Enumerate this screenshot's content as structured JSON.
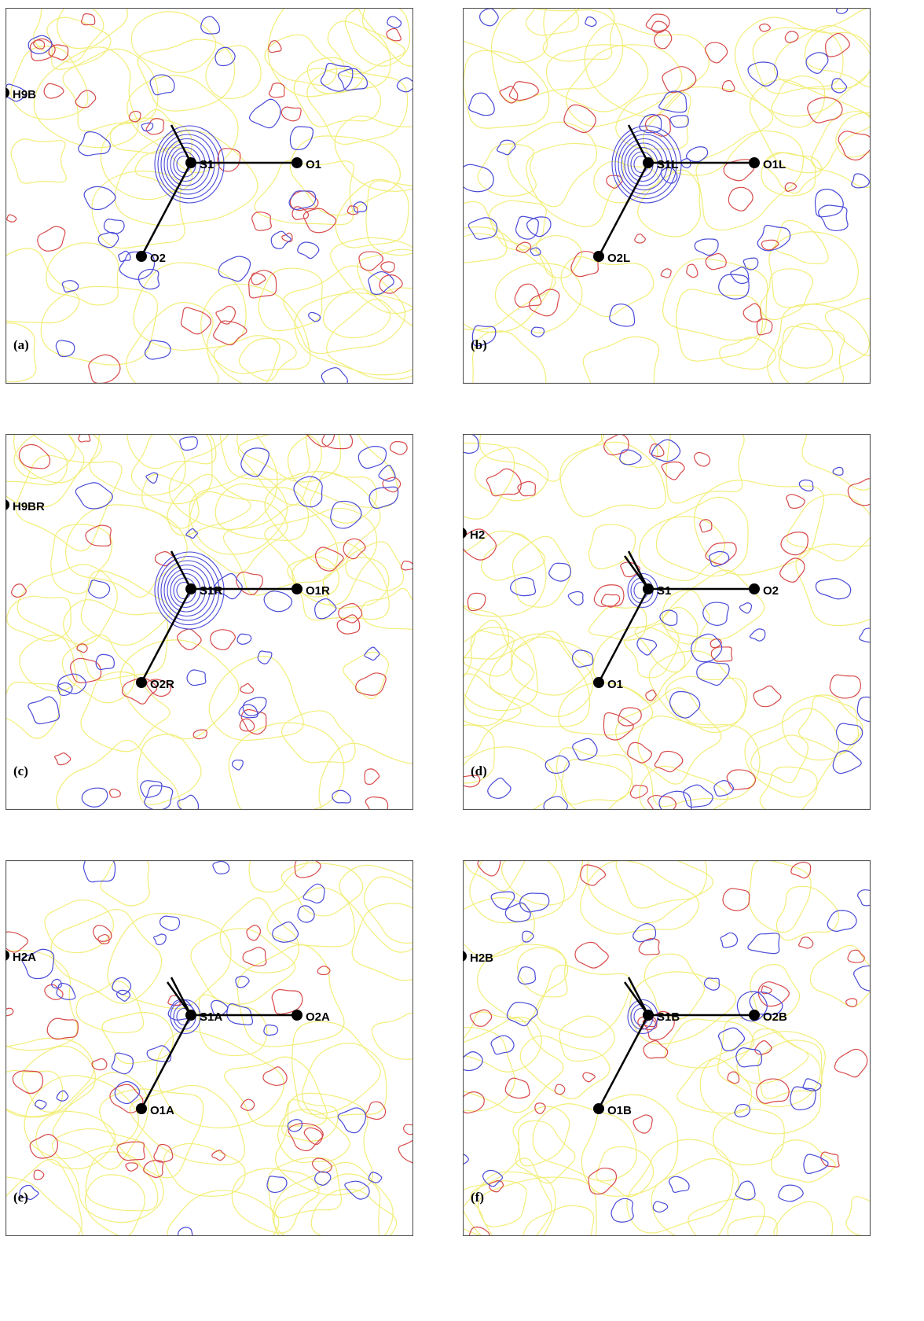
{
  "panels": [
    {
      "label": "(a)",
      "atoms": {
        "hydrogen": "H9B",
        "sulfur": "S1",
        "oxygen_right": "O1",
        "oxygen_lower": "O2"
      }
    },
    {
      "label": "(b)",
      "atoms": {
        "sulfur": "S1L",
        "oxygen_right": "O1L",
        "oxygen_lower": "O2L"
      }
    },
    {
      "label": "(c)",
      "atoms": {
        "hydrogen": "H9BR",
        "sulfur": "S1R",
        "oxygen_right": "O1R",
        "oxygen_lower": "O2R"
      }
    },
    {
      "label": "(d)",
      "atoms": {
        "hydrogen": "H2",
        "sulfur": "S1",
        "oxygen_right": "O2",
        "oxygen_lower": "O1"
      }
    },
    {
      "label": "(e)",
      "atoms": {
        "hydrogen": "H2A",
        "sulfur": "S1A",
        "oxygen_right": "O2A",
        "oxygen_lower": "O1A"
      }
    },
    {
      "label": "(f)",
      "atoms": {
        "hydrogen": "H2B",
        "sulfur": "S1B",
        "oxygen_right": "O2B",
        "oxygen_lower": "O1B"
      }
    }
  ]
}
